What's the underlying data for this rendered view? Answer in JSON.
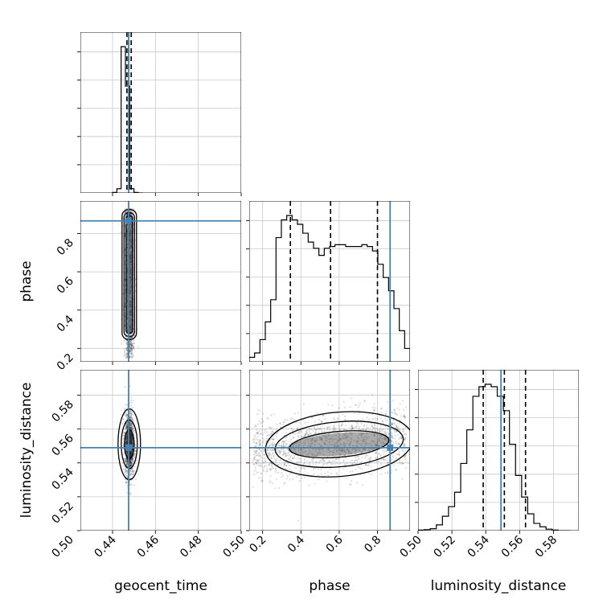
{
  "chart_data": {
    "type": "corner",
    "truth_color": "#4682b4",
    "params": [
      "geocent_time",
      "phase",
      "luminosity_distance"
    ],
    "axes": {
      "geocent_time": {
        "label": "geocent_time",
        "range": [
          0.425,
          0.5
        ],
        "ticks": [
          "0.44",
          "0.46",
          "0.48",
          "0.50"
        ],
        "tick_values": [
          0.44,
          0.46,
          0.48,
          0.5
        ]
      },
      "phase": {
        "label": "phase",
        "range": [
          0.13,
          0.97
        ],
        "ticks": [
          "0.2",
          "0.4",
          "0.6",
          "0.8"
        ],
        "tick_values": [
          0.2,
          0.4,
          0.6,
          0.8
        ]
      },
      "luminosity_distance": {
        "label": "luminosity_distance",
        "range": [
          0.5,
          0.595
        ],
        "ticks": [
          "0.50",
          "0.52",
          "0.54",
          "0.56",
          "0.58"
        ],
        "tick_values": [
          0.5,
          0.52,
          0.54,
          0.56,
          0.58
        ]
      }
    },
    "truths": {
      "geocent_time": 0.4475,
      "phase": 0.866,
      "luminosity_distance": 0.549
    },
    "quantiles": {
      "geocent_time": [
        0.4467,
        0.4476,
        0.4487
      ],
      "phase": [
        0.345,
        0.555,
        0.8
      ],
      "luminosity_distance": [
        0.5385,
        0.551,
        0.5635
      ]
    },
    "histograms": {
      "geocent_time": {
        "edges": [
          0.44,
          0.442,
          0.444,
          0.446,
          0.448,
          0.45,
          0.452,
          0.454
        ],
        "counts": [
          2,
          15,
          520,
          380,
          15,
          2,
          0
        ]
      },
      "phase": {
        "edges": [
          0.13,
          0.158,
          0.186,
          0.214,
          0.242,
          0.27,
          0.298,
          0.326,
          0.354,
          0.382,
          0.41,
          0.438,
          0.466,
          0.494,
          0.522,
          0.55,
          0.578,
          0.606,
          0.634,
          0.662,
          0.69,
          0.718,
          0.746,
          0.774,
          0.802,
          0.83,
          0.858,
          0.886,
          0.914,
          0.942,
          0.97
        ],
        "counts": [
          5,
          10,
          25,
          45,
          70,
          140,
          160,
          165,
          160,
          155,
          145,
          135,
          128,
          120,
          128,
          130,
          132,
          132,
          130,
          130,
          130,
          132,
          130,
          125,
          110,
          95,
          80,
          60,
          35,
          15
        ]
      },
      "luminosity_distance": {
        "edges": [
          0.5,
          0.5036,
          0.5072,
          0.5108,
          0.5144,
          0.518,
          0.5216,
          0.5252,
          0.5288,
          0.5324,
          0.536,
          0.5396,
          0.5432,
          0.5468,
          0.5504,
          0.554,
          0.5576,
          0.5612,
          0.5648,
          0.5684,
          0.572,
          0.5756,
          0.5792,
          0.5828,
          0.5864,
          0.59
        ],
        "counts": [
          1,
          2,
          4,
          12,
          30,
          50,
          80,
          140,
          210,
          280,
          300,
          305,
          300,
          280,
          250,
          180,
          115,
          70,
          35,
          15,
          8,
          3,
          1,
          0,
          0
        ]
      }
    },
    "scatter": {
      "geocent_time_vs_phase": {
        "x_center": 0.4478,
        "x_spread": 0.0012,
        "y_min": 0.15,
        "y_max": 0.93
      },
      "geocent_time_vs_luminosity_distance": {
        "x_center": 0.4478,
        "x_spread": 0.0012,
        "y_center": 0.551,
        "y_spread": 0.0095
      },
      "phase_vs_luminosity_distance": {
        "x_min": 0.15,
        "x_max": 0.95,
        "y_center": 0.551,
        "y_spread": 0.009,
        "slope": 0.012
      }
    }
  }
}
